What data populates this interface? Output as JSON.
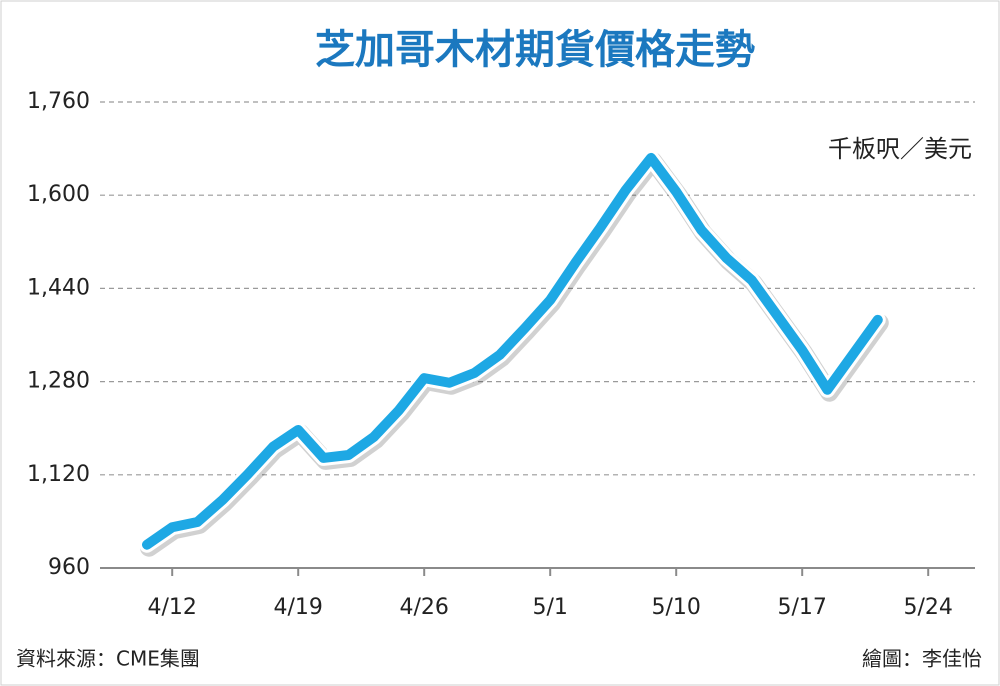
{
  "chart_data": {
    "type": "line",
    "title": "芝加哥木材期貨價格走勢",
    "unit": "千板呎／美元",
    "source": "資料來源：CME集團",
    "credit": "繪圖：李佳怡",
    "categories": [
      null,
      "4/12",
      null,
      null,
      null,
      null,
      "4/19",
      null,
      null,
      null,
      null,
      "4/26",
      null,
      null,
      null,
      null,
      "5/1",
      null,
      null,
      null,
      null,
      "5/10",
      null,
      null,
      null,
      null,
      "5/17",
      null,
      null,
      null,
      null,
      "5/24"
    ],
    "values": [
      1000,
      1030,
      1039,
      1077,
      1121,
      1168,
      1197,
      1149,
      1154,
      1185,
      1231,
      1286,
      1278,
      1295,
      1326,
      1372,
      1420,
      1484,
      1545,
      1609,
      1664,
      1606,
      1540,
      1492,
      1454,
      1394,
      1334,
      1266,
      1326,
      1386,
      null,
      null
    ],
    "color": "#1ea8e4",
    "ylim": [
      960,
      1760
    ],
    "yticks": [
      960,
      {
        "value": 1120,
        "label": "1,120"
      },
      {
        "value": 1280,
        "label": "1,280"
      },
      {
        "value": 1440,
        "label": "1,440"
      },
      {
        "value": 1600,
        "label": "1,600"
      },
      {
        "value": 1760,
        "label": "1,760"
      }
    ],
    "grid": true
  }
}
